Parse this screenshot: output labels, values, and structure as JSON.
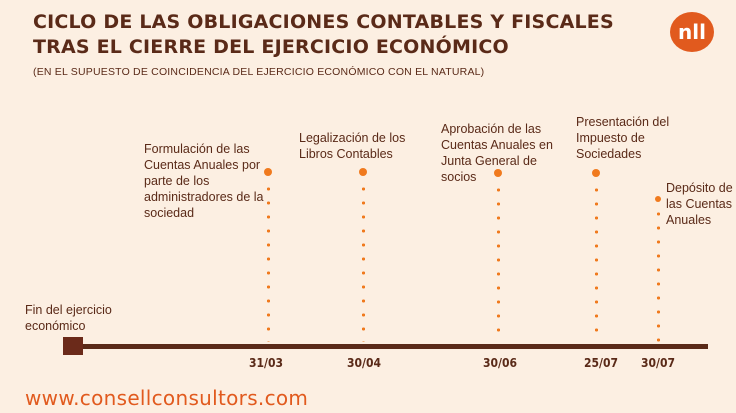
{
  "title_line1": "CICLO DE LAS OBLIGACIONES CONTABLES Y FISCALES",
  "title_line2": "TRAS EL CIERRE DEL EJERCICIO ECONÓMICO",
  "subtitle": "(EN EL SUPUESTO DE COINCIDENCIA DEL EJERCICIO ECONÓMICO CON EL NATURAL)",
  "logo_text": "nll",
  "start": {
    "label": "Fin del ejercicio económico"
  },
  "events": [
    {
      "date": "31/03",
      "label": "Formulación de las Cuentas Anuales por parte de los administradores de la sociedad"
    },
    {
      "date": "30/04",
      "label": "Legalización de los Libros Contables"
    },
    {
      "date": "30/06",
      "label": "Aprobación de las Cuentas Anuales en Junta General de socios"
    },
    {
      "date": "25/07",
      "label": "Presentación del Impuesto de Sociedades"
    },
    {
      "date": "30/07",
      "label": "Depósito de las Cuentas Anuales"
    }
  ],
  "footer": "www.consellconsultors.com",
  "colors": {
    "background": "#fcefe2",
    "dark_brown": "#5a2a18",
    "accent_orange": "#f07a1e",
    "logo_orange": "#e15a1e"
  }
}
